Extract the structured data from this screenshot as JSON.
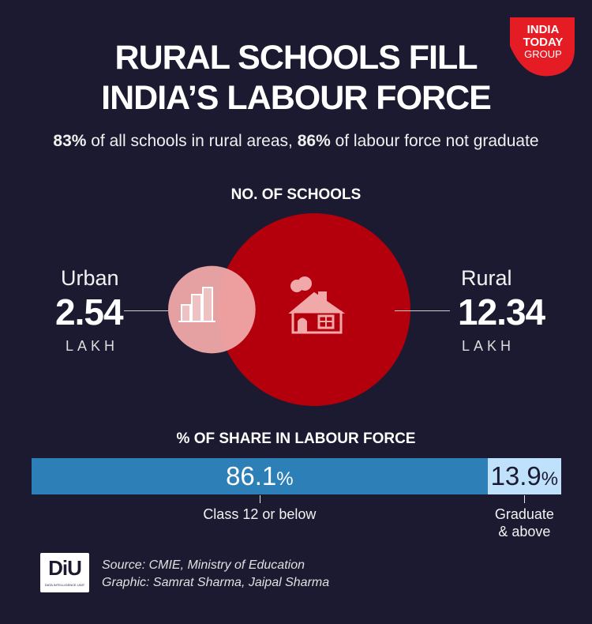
{
  "brand": {
    "logo_line1": "INDIA",
    "logo_line2": "TODAY",
    "logo_line3": "GROUP",
    "logo_color": "#e51c23",
    "diu_mark": "DiU",
    "diu_tagline": "DATA INTELLIGENCE UNIT"
  },
  "title_line1": "RURAL SCHOOLS FILL",
  "title_line2": "INDIA’S LABOUR FORCE",
  "subtitle": {
    "part1_bold": "83%",
    "part2": " of all schools in rural areas, ",
    "part3_bold": "86%",
    "part4": " of labour force not graduate"
  },
  "colors": {
    "background": "#1c1a31",
    "rural_circle": "#b3000c",
    "urban_circle": "#f0a8a8",
    "bar_primary": "#2d7fb8",
    "bar_secondary": "#bfe1fb"
  },
  "chart_data": [
    {
      "type": "bubble",
      "title": "NO. OF SCHOOLS",
      "unit": "LAKH",
      "items": [
        {
          "name": "Urban",
          "value": 2.54,
          "value_label": "2.54",
          "icon": "city-buildings-icon"
        },
        {
          "name": "Rural",
          "value": 12.34,
          "value_label": "12.34",
          "icon": "rural-house-icon"
        }
      ]
    },
    {
      "type": "bar",
      "orientation": "horizontal-stacked",
      "title": "% OF SHARE IN LABOUR FORCE",
      "categories": [
        "Class 12 or below",
        "Graduate & above"
      ],
      "category_labels": [
        [
          "Class 12 or below"
        ],
        [
          "Graduate",
          "& above"
        ]
      ],
      "values": [
        86.1,
        13.9
      ],
      "value_labels": [
        "86.1",
        "13.9"
      ],
      "value_suffix": "%",
      "xlim": [
        0,
        100
      ]
    }
  ],
  "footer": {
    "source": "Source: CMIE, Ministry of Education",
    "graphic": "Graphic: Samrat Sharma, Jaipal Sharma"
  }
}
